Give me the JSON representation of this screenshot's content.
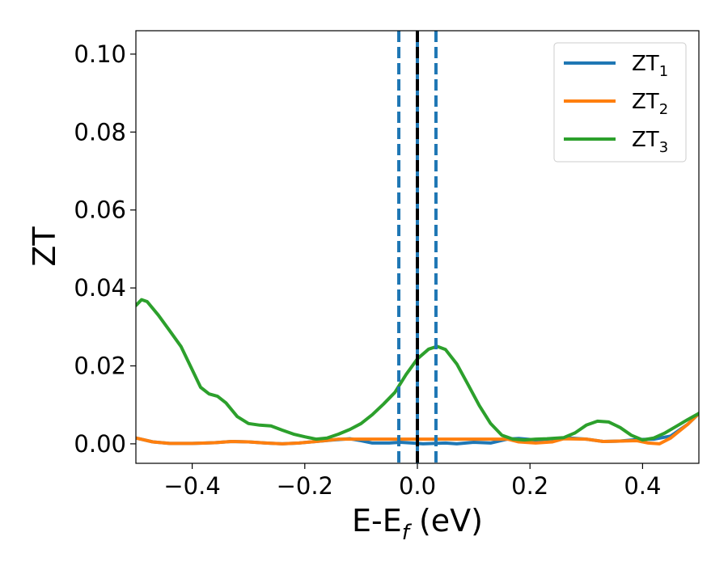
{
  "chart_data": {
    "type": "line",
    "xlabel": "E-E_f (eV)",
    "xlabel_main": "E-E",
    "xlabel_sub": "f",
    "xlabel_unit": " (eV)",
    "ylabel": "ZT",
    "xlim": [
      -0.5,
      0.5
    ],
    "ylim": [
      -0.005,
      0.106
    ],
    "x_ticks": [
      -0.4,
      -0.2,
      0.0,
      0.2,
      0.4
    ],
    "x_tick_labels": [
      "−0.4",
      "−0.2",
      "0.0",
      "0.2",
      "0.4"
    ],
    "y_ticks": [
      0.0,
      0.02,
      0.04,
      0.06,
      0.08,
      0.1
    ],
    "y_tick_labels": [
      "0.00",
      "0.02",
      "0.04",
      "0.06",
      "0.08",
      "0.10"
    ],
    "grid": false,
    "legend_position": "top-right",
    "vertical_lines": [
      {
        "x": -0.033,
        "style": "dashed",
        "color": "#1f77b4"
      },
      {
        "x": 0.0,
        "style": "solid",
        "color": "#1f77b4"
      },
      {
        "x": 0.0,
        "style": "dashed",
        "color": "#000000"
      },
      {
        "x": 0.033,
        "style": "dashed",
        "color": "#1f77b4"
      }
    ],
    "series": [
      {
        "name": "ZT_1",
        "label_main": "ZT",
        "label_sub": "1",
        "color": "#1f77b4",
        "points": [
          [
            -0.5,
            0.0015
          ],
          [
            -0.47,
            0.0005
          ],
          [
            -0.44,
            0.0001
          ],
          [
            -0.4,
            0.0001
          ],
          [
            -0.36,
            0.0003
          ],
          [
            -0.33,
            0.0006
          ],
          [
            -0.3,
            0.0005
          ],
          [
            -0.27,
            0.0002
          ],
          [
            -0.24,
            0.0
          ],
          [
            -0.21,
            0.0002
          ],
          [
            -0.18,
            0.0006
          ],
          [
            -0.15,
            0.001
          ],
          [
            -0.12,
            0.0013
          ],
          [
            -0.1,
            0.0008
          ],
          [
            -0.08,
            0.0002
          ],
          [
            -0.05,
            0.0002
          ],
          [
            -0.03,
            0.0004
          ],
          [
            -0.01,
            0.0002
          ],
          [
            0.01,
            0.0
          ],
          [
            0.03,
            0.0001
          ],
          [
            0.05,
            0.0002
          ],
          [
            0.07,
            0.0
          ],
          [
            0.1,
            0.0004
          ],
          [
            0.13,
            0.0002
          ],
          [
            0.16,
            0.0012
          ],
          [
            0.18,
            0.0014
          ],
          [
            0.21,
            0.001
          ],
          [
            0.24,
            0.0013
          ],
          [
            0.27,
            0.0015
          ],
          [
            0.3,
            0.0012
          ],
          [
            0.33,
            0.0006
          ],
          [
            0.36,
            0.0007
          ],
          [
            0.39,
            0.0011
          ],
          [
            0.42,
            0.0012
          ],
          [
            0.45,
            0.002
          ],
          [
            0.48,
            0.005
          ],
          [
            0.5,
            0.0078
          ]
        ]
      },
      {
        "name": "ZT_2",
        "label_main": "ZT",
        "label_sub": "2",
        "color": "#ff7f0e",
        "points": [
          [
            -0.5,
            0.0015
          ],
          [
            -0.47,
            0.0005
          ],
          [
            -0.44,
            0.0001
          ],
          [
            -0.4,
            0.0001
          ],
          [
            -0.36,
            0.0003
          ],
          [
            -0.33,
            0.0006
          ],
          [
            -0.3,
            0.0005
          ],
          [
            -0.27,
            0.0002
          ],
          [
            -0.24,
            0.0
          ],
          [
            -0.21,
            0.0002
          ],
          [
            -0.18,
            0.0006
          ],
          [
            -0.16,
            0.0009
          ],
          [
            -0.14,
            0.0012
          ],
          [
            0.16,
            0.0012
          ],
          [
            0.18,
            0.0005
          ],
          [
            0.21,
            0.0002
          ],
          [
            0.24,
            0.0005
          ],
          [
            0.26,
            0.0013
          ],
          [
            0.3,
            0.0012
          ],
          [
            0.33,
            0.0006
          ],
          [
            0.36,
            0.0007
          ],
          [
            0.39,
            0.0008
          ],
          [
            0.41,
            0.0002
          ],
          [
            0.43,
            0.0
          ],
          [
            0.45,
            0.0015
          ],
          [
            0.48,
            0.005
          ],
          [
            0.5,
            0.0078
          ]
        ]
      },
      {
        "name": "ZT_3",
        "label_main": "ZT",
        "label_sub": "3",
        "color": "#2ca02c",
        "points": [
          [
            -0.5,
            0.0355
          ],
          [
            -0.49,
            0.037
          ],
          [
            -0.48,
            0.0365
          ],
          [
            -0.46,
            0.033
          ],
          [
            -0.44,
            0.029
          ],
          [
            -0.42,
            0.025
          ],
          [
            -0.4,
            0.019
          ],
          [
            -0.385,
            0.0145
          ],
          [
            -0.37,
            0.0128
          ],
          [
            -0.355,
            0.0122
          ],
          [
            -0.34,
            0.0105
          ],
          [
            -0.32,
            0.007
          ],
          [
            -0.3,
            0.0052
          ],
          [
            -0.28,
            0.0048
          ],
          [
            -0.26,
            0.0046
          ],
          [
            -0.24,
            0.0035
          ],
          [
            -0.22,
            0.0025
          ],
          [
            -0.2,
            0.0018
          ],
          [
            -0.18,
            0.0012
          ],
          [
            -0.16,
            0.0015
          ],
          [
            -0.14,
            0.0025
          ],
          [
            -0.12,
            0.0037
          ],
          [
            -0.1,
            0.0052
          ],
          [
            -0.08,
            0.0075
          ],
          [
            -0.06,
            0.0102
          ],
          [
            -0.04,
            0.0132
          ],
          [
            -0.02,
            0.0178
          ],
          [
            0.0,
            0.0218
          ],
          [
            0.02,
            0.0243
          ],
          [
            0.035,
            0.025
          ],
          [
            0.05,
            0.0242
          ],
          [
            0.07,
            0.0205
          ],
          [
            0.09,
            0.0152
          ],
          [
            0.11,
            0.0098
          ],
          [
            0.13,
            0.0052
          ],
          [
            0.15,
            0.0022
          ],
          [
            0.17,
            0.0012
          ],
          [
            0.19,
            0.001
          ],
          [
            0.21,
            0.0012
          ],
          [
            0.23,
            0.0013
          ],
          [
            0.26,
            0.0016
          ],
          [
            0.28,
            0.0028
          ],
          [
            0.3,
            0.0048
          ],
          [
            0.32,
            0.0058
          ],
          [
            0.34,
            0.0056
          ],
          [
            0.36,
            0.0042
          ],
          [
            0.38,
            0.0022
          ],
          [
            0.4,
            0.001
          ],
          [
            0.42,
            0.0015
          ],
          [
            0.44,
            0.0028
          ],
          [
            0.46,
            0.0045
          ],
          [
            0.48,
            0.0062
          ],
          [
            0.5,
            0.0078
          ]
        ]
      }
    ]
  }
}
